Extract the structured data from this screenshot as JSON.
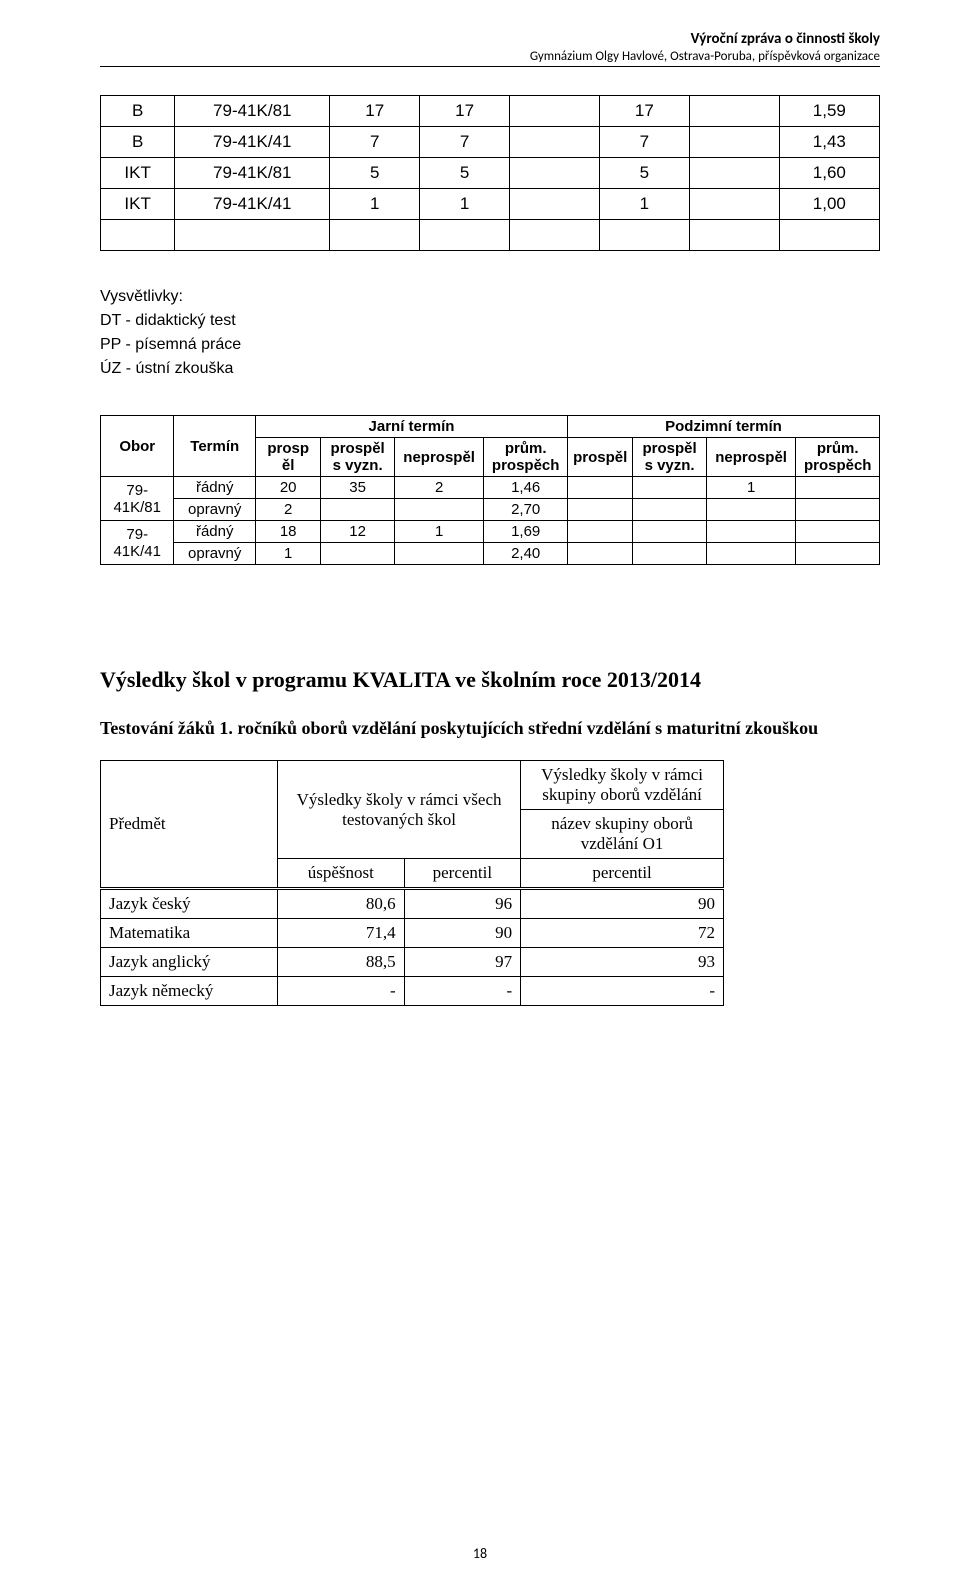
{
  "header": {
    "title": "Výroční zpráva o činnosti školy",
    "subtitle": "Gymnázium Olgy Havlové, Ostrava-Poruba, příspěvková organizace"
  },
  "table1": {
    "rows": [
      {
        "c0": "B",
        "c1": "79-41K/81",
        "v": [
          "17",
          "17",
          "",
          "17",
          "",
          "1,59"
        ]
      },
      {
        "c0": "B",
        "c1": "79-41K/41",
        "v": [
          "7",
          "7",
          "",
          "7",
          "",
          "1,43"
        ]
      },
      {
        "c0": "IKT",
        "c1": "79-41K/81",
        "v": [
          "5",
          "5",
          "",
          "5",
          "",
          "1,60"
        ]
      },
      {
        "c0": "IKT",
        "c1": "79-41K/41",
        "v": [
          "1",
          "1",
          "",
          "1",
          "",
          "1,00"
        ]
      }
    ],
    "blank_cols": 8
  },
  "legend": {
    "title": "Vysvětlivky:",
    "lines": [
      "DT - didaktický test",
      "PP - písemná práce",
      "ÚZ - ústní zkouška"
    ]
  },
  "table2": {
    "head": {
      "obor": "Obor",
      "termin": "Termín",
      "jarni": "Jarní termín",
      "podzimni": "Podzimní termín",
      "prospel": "prosp\něl",
      "svyzn": "prospěl\ns vyzn.",
      "neprospel": "neprospěl",
      "prum": "prům.\nprospěch"
    },
    "groups": [
      {
        "obor": "79-\n41K/81",
        "rows": [
          {
            "termin": "řádný",
            "j": [
              "20",
              "35",
              "2",
              "1,46"
            ],
            "p": [
              "",
              "",
              "1",
              ""
            ]
          },
          {
            "termin": "opravný",
            "j": [
              "2",
              "",
              "",
              "2,70"
            ],
            "p": [
              "",
              "",
              "",
              ""
            ]
          }
        ]
      },
      {
        "obor": "79-\n41K/41",
        "rows": [
          {
            "termin": "řádný",
            "j": [
              "18",
              "12",
              "1",
              "1,69"
            ],
            "p": [
              "",
              "",
              "",
              ""
            ]
          },
          {
            "termin": "opravný",
            "j": [
              "1",
              "",
              "",
              "2,40"
            ],
            "p": [
              "",
              "",
              "",
              ""
            ]
          }
        ]
      }
    ]
  },
  "section": {
    "heading": "Výsledky škol v programu KVALITA ve školním roce 2013/2014",
    "subheading": "Testování žáků 1. ročníků oborů vzdělání poskytujících střední vzdělání s maturitní zkouškou"
  },
  "table3": {
    "head": {
      "subject": "Předmět",
      "col1": "Výsledky školy v rámci všech testovaných škol",
      "col2_top": "Výsledky školy v rámci skupiny oborů vzdělání",
      "col2_mid": "název skupiny oborů vzdělání O1",
      "sub_usp": "úspěšnost",
      "sub_perc": "percentil",
      "sub_perc2": "percentil"
    },
    "rows": [
      {
        "subject": "Jazyk český",
        "usp": "80,6",
        "perc": "96",
        "perc2": "90"
      },
      {
        "subject": "Matematika",
        "usp": "71,4",
        "perc": "90",
        "perc2": "72"
      },
      {
        "subject": "Jazyk anglický",
        "usp": "88,5",
        "perc": "97",
        "perc2": "93"
      },
      {
        "subject": "Jazyk německý",
        "usp": "-",
        "perc": "-",
        "perc2": "-"
      }
    ]
  },
  "pagenum": "18"
}
